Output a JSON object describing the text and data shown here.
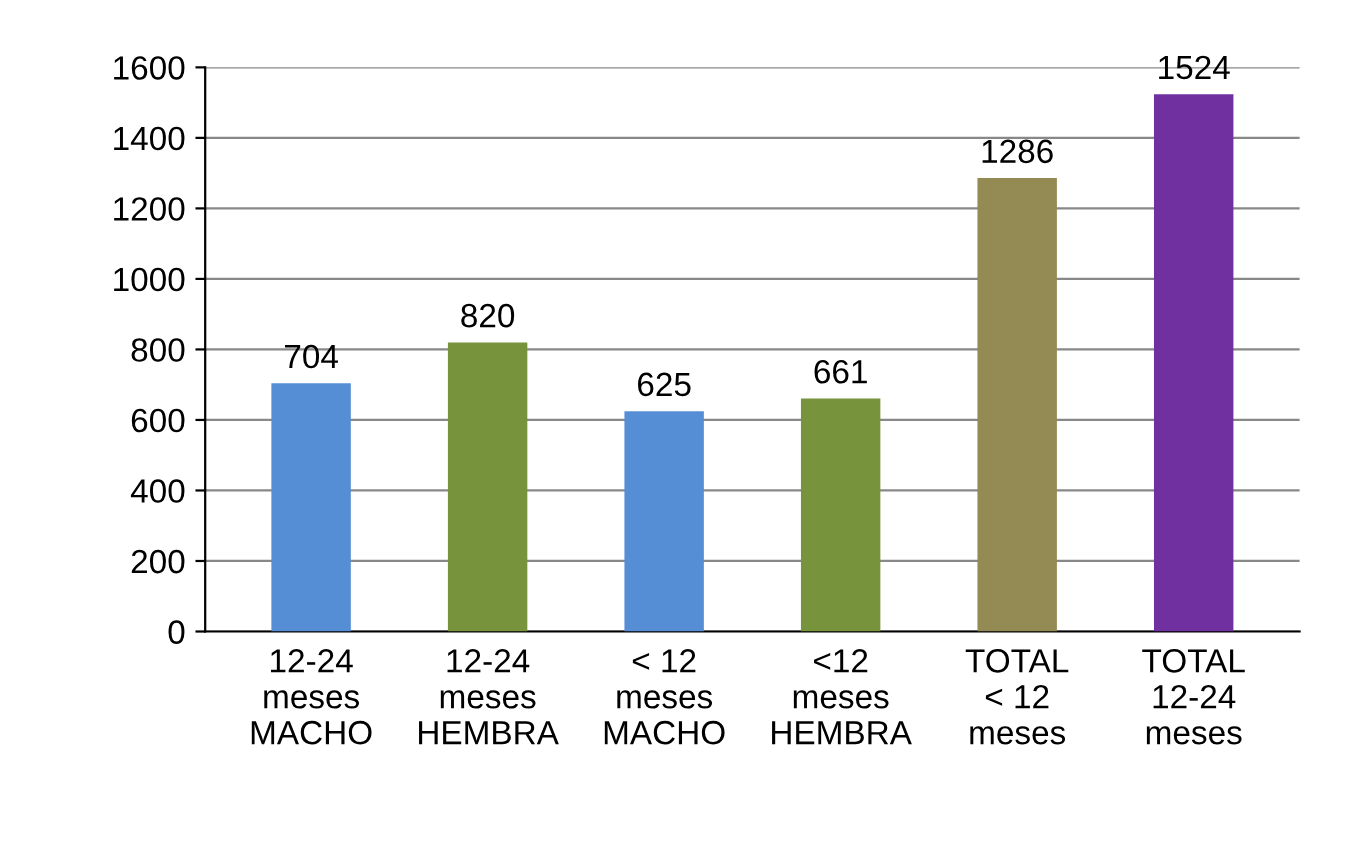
{
  "chart_data": {
    "type": "bar",
    "categories": [
      "12-24\nmeses\nMACHO",
      "12-24\nmeses\nHEMBRA",
      "< 12\nmeses\nMACHO",
      "<12\nmeses\nHEMBRA",
      "TOTAL\n< 12\nmeses",
      "TOTAL\n12-24\nmeses"
    ],
    "values": [
      704,
      820,
      625,
      661,
      1286,
      1524
    ],
    "colors": [
      "#558ed5",
      "#77933c",
      "#558ed5",
      "#77933c",
      "#948a54",
      "#7030a0"
    ],
    "ylim": [
      0,
      1600
    ],
    "yticks": [
      0,
      200,
      400,
      600,
      800,
      1000,
      1200,
      1400,
      1600
    ],
    "grid": "y",
    "data_labels": true
  }
}
